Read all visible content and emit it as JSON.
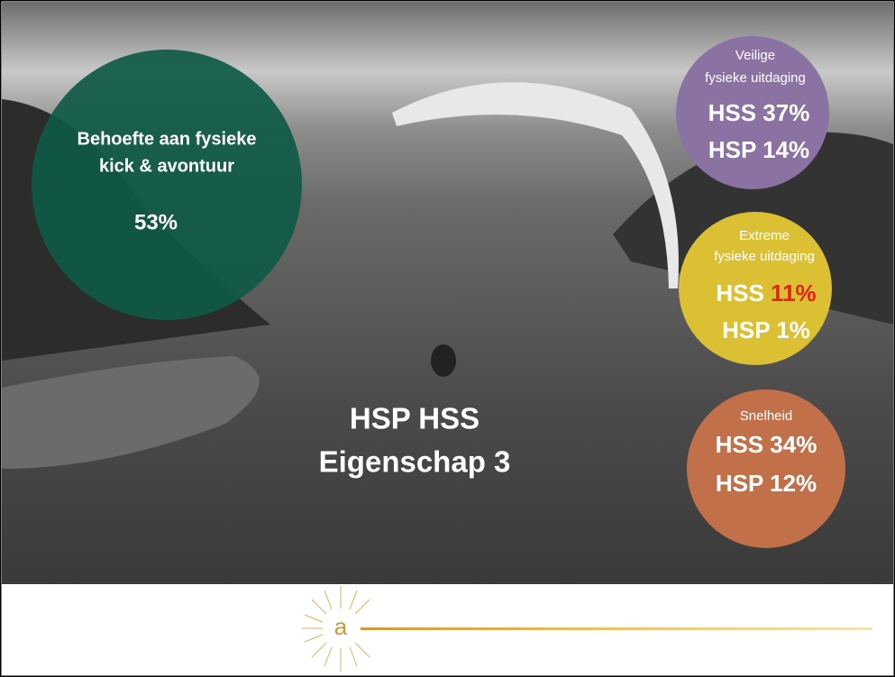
{
  "title": {
    "line1": "HSP HSS",
    "line2": "Eigenschap 3"
  },
  "circles": [
    {
      "heading": [
        "Behoefte aan fysieke",
        "kick & avontuur"
      ],
      "value": "53%"
    },
    {
      "heading": [
        "Veilige",
        "fysieke uitdaging"
      ],
      "lines": [
        "HSS 37%",
        "HSP 14%"
      ]
    },
    {
      "heading": [
        "Extreme",
        "fysieke uitdaging"
      ],
      "lines": [
        {
          "prefix": "HSS",
          "highlight": "11%"
        },
        "HSP 1%"
      ]
    },
    {
      "heading": [
        "Snelheid"
      ],
      "lines": [
        "HSS 34%",
        "HSP 12%"
      ]
    }
  ],
  "logo": "a"
}
